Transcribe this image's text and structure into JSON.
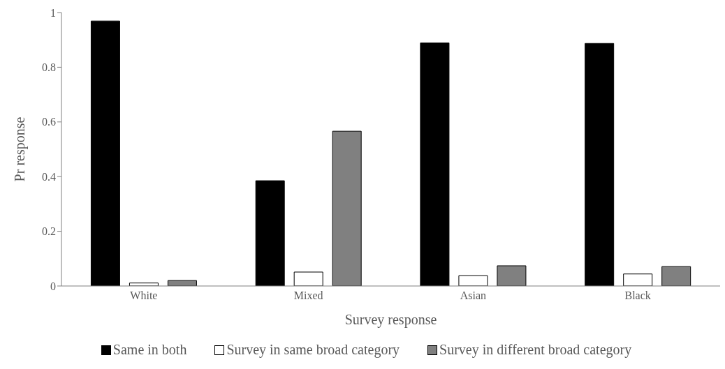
{
  "chart_data": {
    "type": "bar",
    "xlabel": "Survey response",
    "ylabel": "Pr response",
    "categories": [
      "White",
      "Mixed",
      "Asian",
      "Black"
    ],
    "series": [
      {
        "name": "Same in both",
        "color": "#000000",
        "values": [
          0.969,
          0.385,
          0.889,
          0.887
        ]
      },
      {
        "name": "Survey in same broad category",
        "color": "#ffffff",
        "values": [
          0.011,
          0.051,
          0.038,
          0.044
        ]
      },
      {
        "name": "Survey in different broad category",
        "color": "#808080",
        "values": [
          0.02,
          0.566,
          0.074,
          0.071
        ]
      }
    ],
    "ylim": [
      0,
      1
    ],
    "yticks": [
      0,
      0.2,
      0.4,
      0.6,
      0.8,
      1
    ],
    "grid": false,
    "legend": "bottom"
  }
}
